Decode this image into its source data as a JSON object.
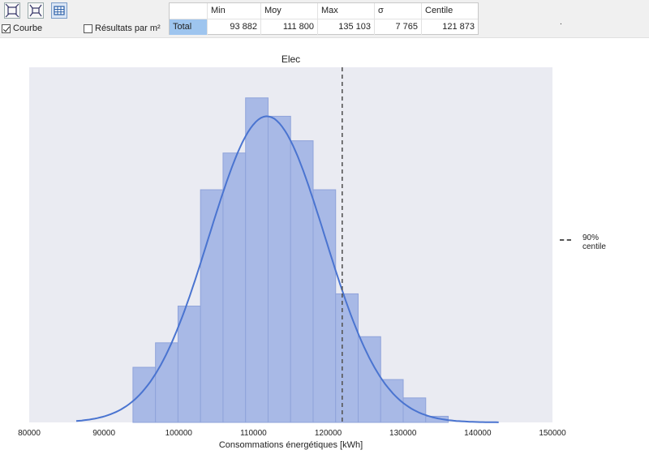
{
  "toolbar": {
    "buttons": [
      {
        "icon": "zoom-fit-icon"
      },
      {
        "icon": "zoom-reset-icon"
      },
      {
        "icon": "table-icon"
      }
    ],
    "courbe_label": "Courbe",
    "courbe_checked": true,
    "resultats_label": "Résultats par m²",
    "resultats_checked": false,
    "dot": "."
  },
  "stats_table": {
    "headers": [
      "",
      "Min",
      "Moy",
      "Max",
      "σ",
      "Centile"
    ],
    "rows": [
      {
        "label": "Total",
        "values": [
          "93 882",
          "111 800",
          "135 103",
          "7 765",
          "121 873"
        ]
      }
    ]
  },
  "legend": {
    "label_line1": "90%",
    "label_line2": "centile"
  },
  "chart_data": {
    "type": "bar",
    "title": "Elec",
    "xlabel": "Consommations énergétiques [kWh]",
    "ylabel": "",
    "xlim": [
      80000,
      150000
    ],
    "xticks": [
      80000,
      90000,
      100000,
      110000,
      120000,
      130000,
      140000,
      150000
    ],
    "bin_edges": [
      93882,
      96895,
      99907,
      102920,
      105932,
      108945,
      111958,
      114970,
      117983,
      120995,
      124008,
      127020,
      130033,
      133045,
      136058
    ],
    "counts": [
      9,
      13,
      19,
      38,
      44,
      53,
      50,
      46,
      38,
      21,
      14,
      7,
      4,
      1
    ],
    "ylim": [
      0,
      58
    ],
    "curve": {
      "type": "normal",
      "mean": 111800,
      "std": 7765,
      "peak": 50,
      "x_range": [
        86300,
        142800
      ]
    },
    "centile_line": {
      "x": 121873,
      "label": "90% centile"
    },
    "colors": {
      "bars": "#a8b9e6",
      "bar_edge": "#8fa3da",
      "curve": "#4a74d0",
      "plot_bg": "#eaebf2",
      "centile": "#555555"
    },
    "grid": false,
    "legend_position": "right"
  }
}
